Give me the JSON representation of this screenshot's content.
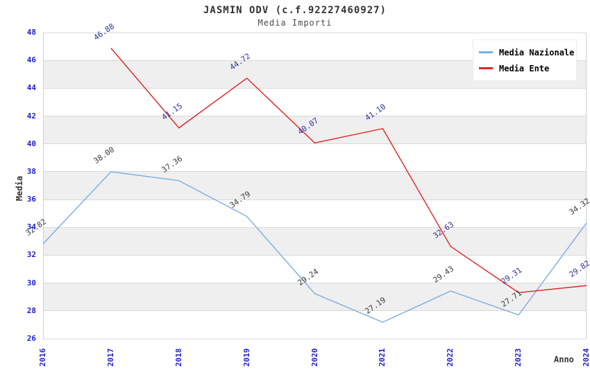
{
  "title": "JASMIN ODV (c.f.92227460927)",
  "subtitle": "Media Importi",
  "axes": {
    "y_label": "Media",
    "x_label": "Anno",
    "tick_label_color": "#2020cc"
  },
  "legend": {
    "position": "top-right",
    "items": [
      {
        "label": "Media Nazionale",
        "color": "#79ade2"
      },
      {
        "label": "Media Ente",
        "color": "#e32222"
      }
    ]
  },
  "style": {
    "grid_color": "#d9d9d9",
    "band_color": "#efefef",
    "border_color": "#cfcfcf",
    "background": "#ffffff"
  },
  "chart_data": {
    "type": "line",
    "title": "JASMIN ODV (c.f.92227460927)",
    "subtitle": "Media Importi",
    "xlabel": "Anno",
    "ylabel": "Media",
    "x": [
      "2016",
      "2017",
      "2018",
      "2019",
      "2020",
      "2021",
      "2022",
      "2023",
      "2024"
    ],
    "ylim": [
      26,
      48
    ],
    "ytick_step": 2,
    "y_ticks": [
      26,
      28,
      30,
      32,
      34,
      36,
      38,
      40,
      42,
      44,
      46,
      48
    ],
    "grid": true,
    "alternating_bands": true,
    "legend_position": "top-right",
    "series": [
      {
        "name": "Media Nazionale",
        "color": "#79ade2",
        "annotation_color": "#3a3a3a",
        "values": [
          32.82,
          38.0,
          37.36,
          34.79,
          29.24,
          27.19,
          29.43,
          27.71,
          34.32
        ],
        "labels": [
          "32.82",
          "38.00",
          "37.36",
          "34.79",
          "29.24",
          "27.19",
          "29.43",
          "27.71",
          "34.32"
        ]
      },
      {
        "name": "Media Ente",
        "color": "#e32222",
        "annotation_color": "#2f2f9d",
        "values": [
          null,
          46.88,
          41.15,
          44.72,
          40.07,
          41.1,
          32.63,
          29.31,
          29.82
        ],
        "labels": [
          null,
          "46.88",
          "41.15",
          "44.72",
          "40.07",
          "41.10",
          "32.63",
          "29.31",
          "29.82"
        ]
      }
    ]
  }
}
